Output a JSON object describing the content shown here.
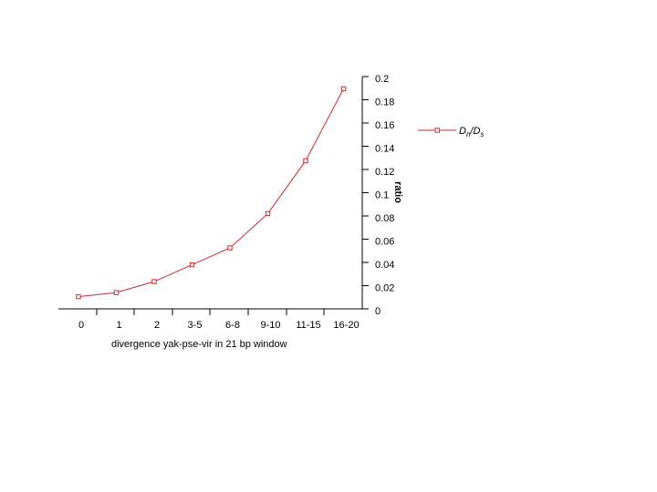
{
  "chart_data": {
    "type": "line",
    "categories": [
      "0",
      "1",
      "2",
      "3-5",
      "6-8",
      "9-10",
      "11-15",
      "16-20"
    ],
    "series": [
      {
        "name": "Dn/Ds",
        "values": [
          0.0105,
          0.014,
          0.0235,
          0.038,
          0.0525,
          0.082,
          0.1275,
          0.1895
        ],
        "color": "#cc2a2a",
        "marker": "square"
      }
    ],
    "legend": {
      "label_main": "D",
      "label_sub1": "n",
      "label_sep": "/D",
      "label_sub2": "s",
      "position": "right"
    },
    "xlabel": "divergence yak-pse-vir in 21 bp window",
    "ylabel": "ratio",
    "yaxis_side": "right",
    "ylim": [
      0,
      0.2
    ],
    "yticks": [
      "0",
      "0.02",
      "0.04",
      "0.06",
      "0.08",
      "0.1",
      "0.12",
      "0.14",
      "0.16",
      "0.18",
      "0.2"
    ],
    "grid": false
  }
}
